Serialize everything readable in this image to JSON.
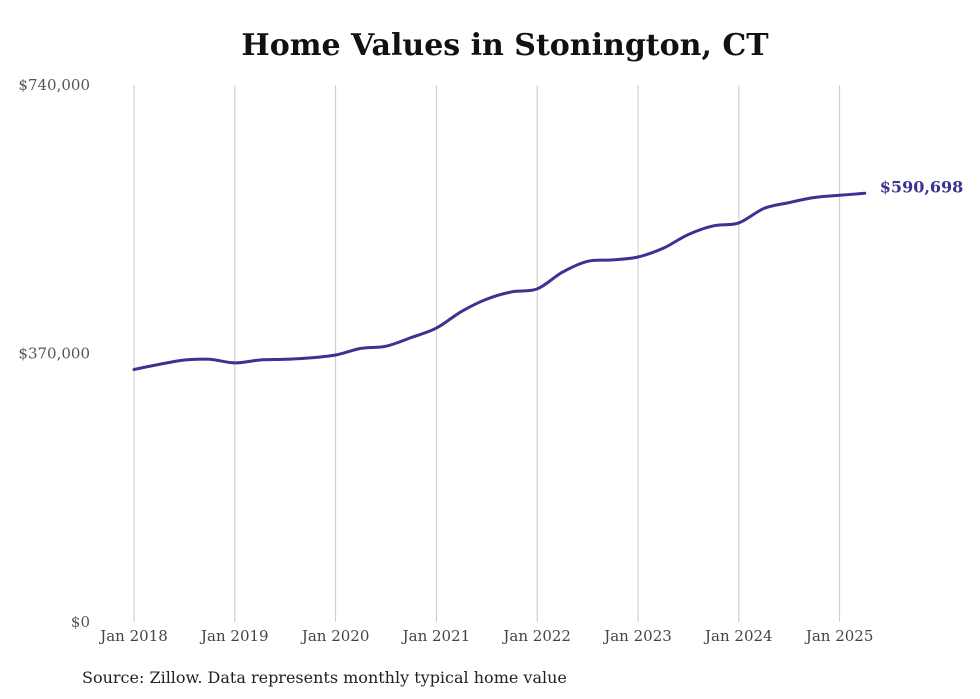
{
  "chart_data": {
    "type": "line",
    "title": "Home Values in Stonington, CT",
    "source": "Source: Zillow. Data represents monthly typical home value",
    "ylim": [
      0,
      740000
    ],
    "yticks": [
      {
        "value": 0,
        "label": "$0"
      },
      {
        "value": 370000,
        "label": "$370,000"
      },
      {
        "value": 740000,
        "label": "$740,000"
      }
    ],
    "xticks": [
      {
        "value": "2018-01",
        "label": "Jan 2018"
      },
      {
        "value": "2019-01",
        "label": "Jan 2019"
      },
      {
        "value": "2020-01",
        "label": "Jan 2020"
      },
      {
        "value": "2021-01",
        "label": "Jan 2021"
      },
      {
        "value": "2022-01",
        "label": "Jan 2022"
      },
      {
        "value": "2023-01",
        "label": "Jan 2023"
      },
      {
        "value": "2024-01",
        "label": "Jan 2024"
      },
      {
        "value": "2025-01",
        "label": "Jan 2025"
      }
    ],
    "grid": {
      "vertical": true,
      "horizontal": false
    },
    "line_color": "#3a3391",
    "end_label": "$590,698",
    "series": [
      {
        "x": [
          "2018-01",
          "2018-04",
          "2018-07",
          "2018-10",
          "2019-01",
          "2019-04",
          "2019-07",
          "2019-10",
          "2020-01",
          "2020-04",
          "2020-07",
          "2020-10",
          "2021-01",
          "2021-04",
          "2021-07",
          "2021-10",
          "2022-01",
          "2022-04",
          "2022-07",
          "2022-10",
          "2023-01",
          "2023-04",
          "2023-07",
          "2023-10",
          "2024-01",
          "2024-04",
          "2024-07",
          "2024-10",
          "2025-01",
          "2025-04"
        ],
        "values": [
          348000,
          355000,
          361000,
          362000,
          357000,
          361000,
          362000,
          364000,
          368000,
          377000,
          380000,
          392000,
          405000,
          428000,
          445000,
          455000,
          459000,
          482000,
          497000,
          499000,
          503000,
          515000,
          534000,
          546000,
          550000,
          570000,
          578000,
          585000,
          588000,
          590698
        ]
      }
    ]
  }
}
